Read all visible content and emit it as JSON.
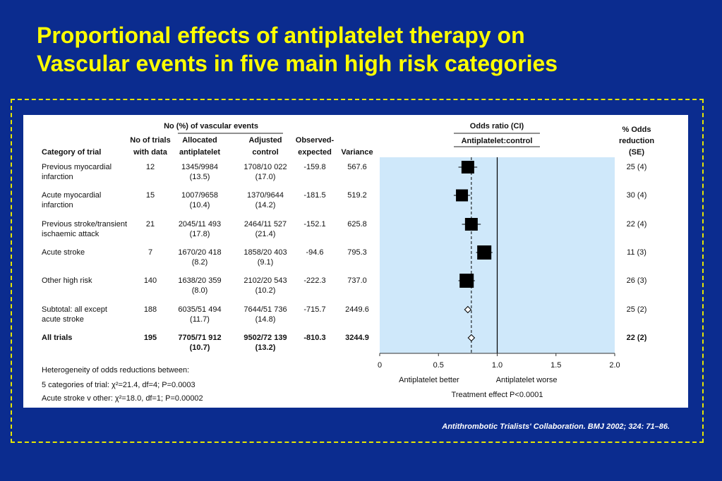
{
  "title": {
    "line1": "Proportional effects of antiplatelet therapy on",
    "line2": "Vascular events in five main high risk categories"
  },
  "citation": "Antithrombotic Trialists' Collaboration. BMJ 2002; 324: 71–86.",
  "headers": {
    "group_vascular": "No (%) of vascular events",
    "category": "Category of trial",
    "trials": [
      "No of trials",
      "with data"
    ],
    "allocated": [
      "Allocated",
      "antiplatelet"
    ],
    "adjusted": [
      "Adjusted",
      "control"
    ],
    "oe": [
      "Observed-",
      "expected"
    ],
    "variance": "Variance",
    "odds_ratio": "Odds ratio (CI)",
    "odds_sub": "Antiplatelet:control",
    "reduction": [
      "% Odds",
      "reduction",
      "(SE)"
    ]
  },
  "rows": [
    {
      "cat": [
        "Previous myocardial",
        " infarction"
      ],
      "trials": "12",
      "alloc": [
        "1345/9984",
        "(13.5)"
      ],
      "ctrl": [
        "1708/10 022",
        "(17.0)"
      ],
      "oe": "-159.8",
      "var": "567.6",
      "red": "25 (4)",
      "bold": false
    },
    {
      "cat": [
        "Acute myocardial",
        " infarction"
      ],
      "trials": "15",
      "alloc": [
        "1007/9658",
        "(10.4)"
      ],
      "ctrl": [
        "1370/9644",
        "(14.2)"
      ],
      "oe": "-181.5",
      "var": "519.2",
      "red": "30 (4)",
      "bold": false
    },
    {
      "cat": [
        "Previous stroke/transient",
        " ischaemic attack"
      ],
      "trials": "21",
      "alloc": [
        "2045/11 493",
        "(17.8)"
      ],
      "ctrl": [
        "2464/11 527",
        "(21.4)"
      ],
      "oe": "-152.1",
      "var": "625.8",
      "red": "22 (4)",
      "bold": false
    },
    {
      "cat": [
        "Acute stroke"
      ],
      "trials": "7",
      "alloc": [
        "1670/20 418",
        "(8.2)"
      ],
      "ctrl": [
        "1858/20 403",
        "(9.1)"
      ],
      "oe": "-94.6",
      "var": "795.3",
      "red": "11 (3)",
      "bold": false
    },
    {
      "cat": [
        "Other high risk"
      ],
      "trials": "140",
      "alloc": [
        "1638/20 359",
        "(8.0)"
      ],
      "ctrl": [
        "2102/20 543",
        "(10.2)"
      ],
      "oe": "-222.3",
      "var": "737.0",
      "red": "26 (3)",
      "bold": false
    },
    {
      "cat": [
        "Subtotal: all except",
        " acute stroke"
      ],
      "trials": "188",
      "alloc": [
        "6035/51 494",
        "(11.7)"
      ],
      "ctrl": [
        "7644/51 736",
        "(14.8)"
      ],
      "oe": "-715.7",
      "var": "2449.6",
      "red": "25 (2)",
      "bold": false
    },
    {
      "cat": [
        "All trials"
      ],
      "trials": "195",
      "alloc": [
        "7705/71 912",
        "(10.7)"
      ],
      "ctrl": [
        "9502/72 139",
        "(13.2)"
      ],
      "oe": "-810.3",
      "var": "3244.9",
      "red": "22 (2)",
      "bold": true
    }
  ],
  "footnotes": [
    "Heterogeneity of odds reductions between:",
    "5 categories of trial: χ²=21.4, df=4; P=0.0003",
    "Acute stroke v other: χ²=18.0, df=1; P=0.00002"
  ],
  "chart_data": {
    "type": "forest",
    "title": "Odds ratio (CI)",
    "subtitle": "Antiplatelet:control",
    "xlim": [
      0,
      2.0
    ],
    "xticks": [
      0,
      0.5,
      1.0,
      1.5,
      2.0
    ],
    "xtick_labels": [
      "0",
      "0.5",
      "1.0",
      "1.5",
      "2.0"
    ],
    "null_line": 1.0,
    "pooled_line": 0.78,
    "left_label": "Antiplatelet better",
    "right_label": "Antiplatelet worse",
    "effect_label": "Treatment effect P<0.0001",
    "colors": {
      "plot_bg": "#cfe8fa",
      "marker": "#000000"
    },
    "points": [
      {
        "category": "Previous myocardial infarction",
        "or": 0.75,
        "lo": 0.67,
        "hi": 0.83,
        "marker": "square",
        "size": 18
      },
      {
        "category": "Acute myocardial infarction",
        "or": 0.7,
        "lo": 0.63,
        "hi": 0.77,
        "marker": "square",
        "size": 17
      },
      {
        "category": "Previous stroke/transient ischaemic attack",
        "or": 0.78,
        "lo": 0.7,
        "hi": 0.86,
        "marker": "square",
        "size": 18
      },
      {
        "category": "Acute stroke",
        "or": 0.89,
        "lo": 0.82,
        "hi": 0.96,
        "marker": "square",
        "size": 20
      },
      {
        "category": "Other high risk",
        "or": 0.74,
        "lo": 0.67,
        "hi": 0.81,
        "marker": "square",
        "size": 20
      },
      {
        "category": "Subtotal: all except acute stroke",
        "or": 0.75,
        "lo": 0.72,
        "hi": 0.78,
        "marker": "diamond",
        "size": 9
      },
      {
        "category": "All trials",
        "or": 0.78,
        "lo": 0.75,
        "hi": 0.81,
        "marker": "diamond",
        "size": 9
      }
    ]
  }
}
